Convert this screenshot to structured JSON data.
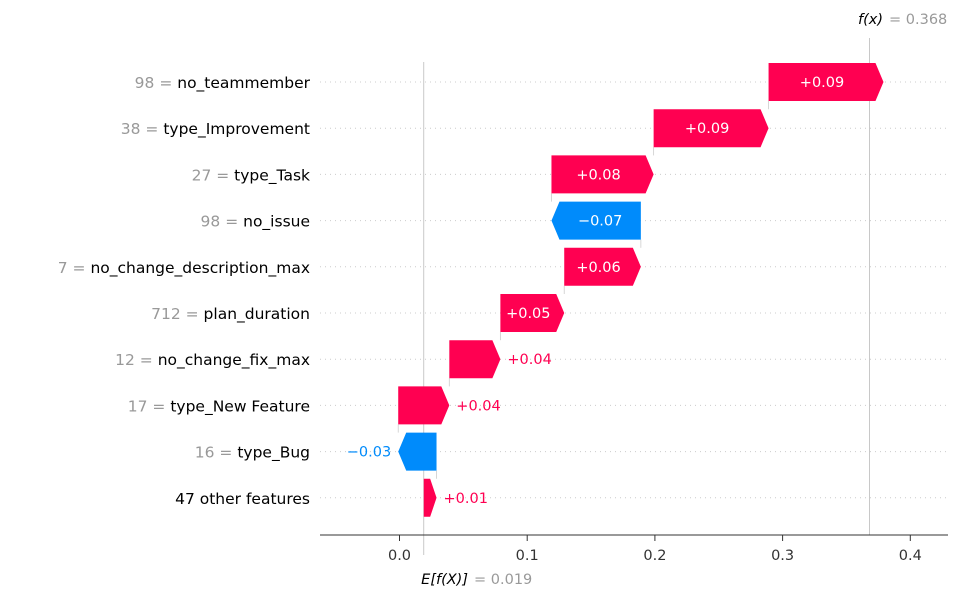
{
  "chart_data": {
    "type": "waterfall",
    "base_value": 0.019,
    "base_label": "E[f(X)]",
    "base_value_text": "= 0.019",
    "output_value": 0.368,
    "output_label": "f(x)",
    "output_value_text": "= 0.368",
    "xlim": [
      -0.06,
      0.43
    ],
    "x_ticks": [
      0.0,
      0.1,
      0.2,
      0.3,
      0.4
    ],
    "x_tick_labels": [
      "0.0",
      "0.1",
      "0.2",
      "0.3",
      "0.4"
    ],
    "features": [
      {
        "value": "98 =",
        "name": "no_teammember",
        "shap": 0.09,
        "label": "+0.09"
      },
      {
        "value": "38 =",
        "name": "type_Improvement",
        "shap": 0.09,
        "label": "+0.09"
      },
      {
        "value": "27 =",
        "name": "type_Task",
        "shap": 0.08,
        "label": "+0.08"
      },
      {
        "value": "98 =",
        "name": "no_issue",
        "shap": -0.07,
        "label": "−0.07"
      },
      {
        "value": "7 =",
        "name": "no_change_description_max",
        "shap": 0.06,
        "label": "+0.06"
      },
      {
        "value": "712 =",
        "name": "plan_duration",
        "shap": 0.05,
        "label": "+0.05"
      },
      {
        "value": "12 =",
        "name": "no_change_fix_max",
        "shap": 0.04,
        "label": "+0.04"
      },
      {
        "value": "17 =",
        "name": "type_New Feature",
        "shap": 0.04,
        "label": "+0.04"
      },
      {
        "value": "16 =",
        "name": "type_Bug",
        "shap": -0.03,
        "label": "−0.03"
      },
      {
        "value": "",
        "name": "47 other features",
        "shap": 0.01,
        "label": "+0.01"
      }
    ],
    "colors": {
      "positive": "#ff0051",
      "negative": "#008bfb",
      "label_inside": "#ffffff"
    }
  }
}
